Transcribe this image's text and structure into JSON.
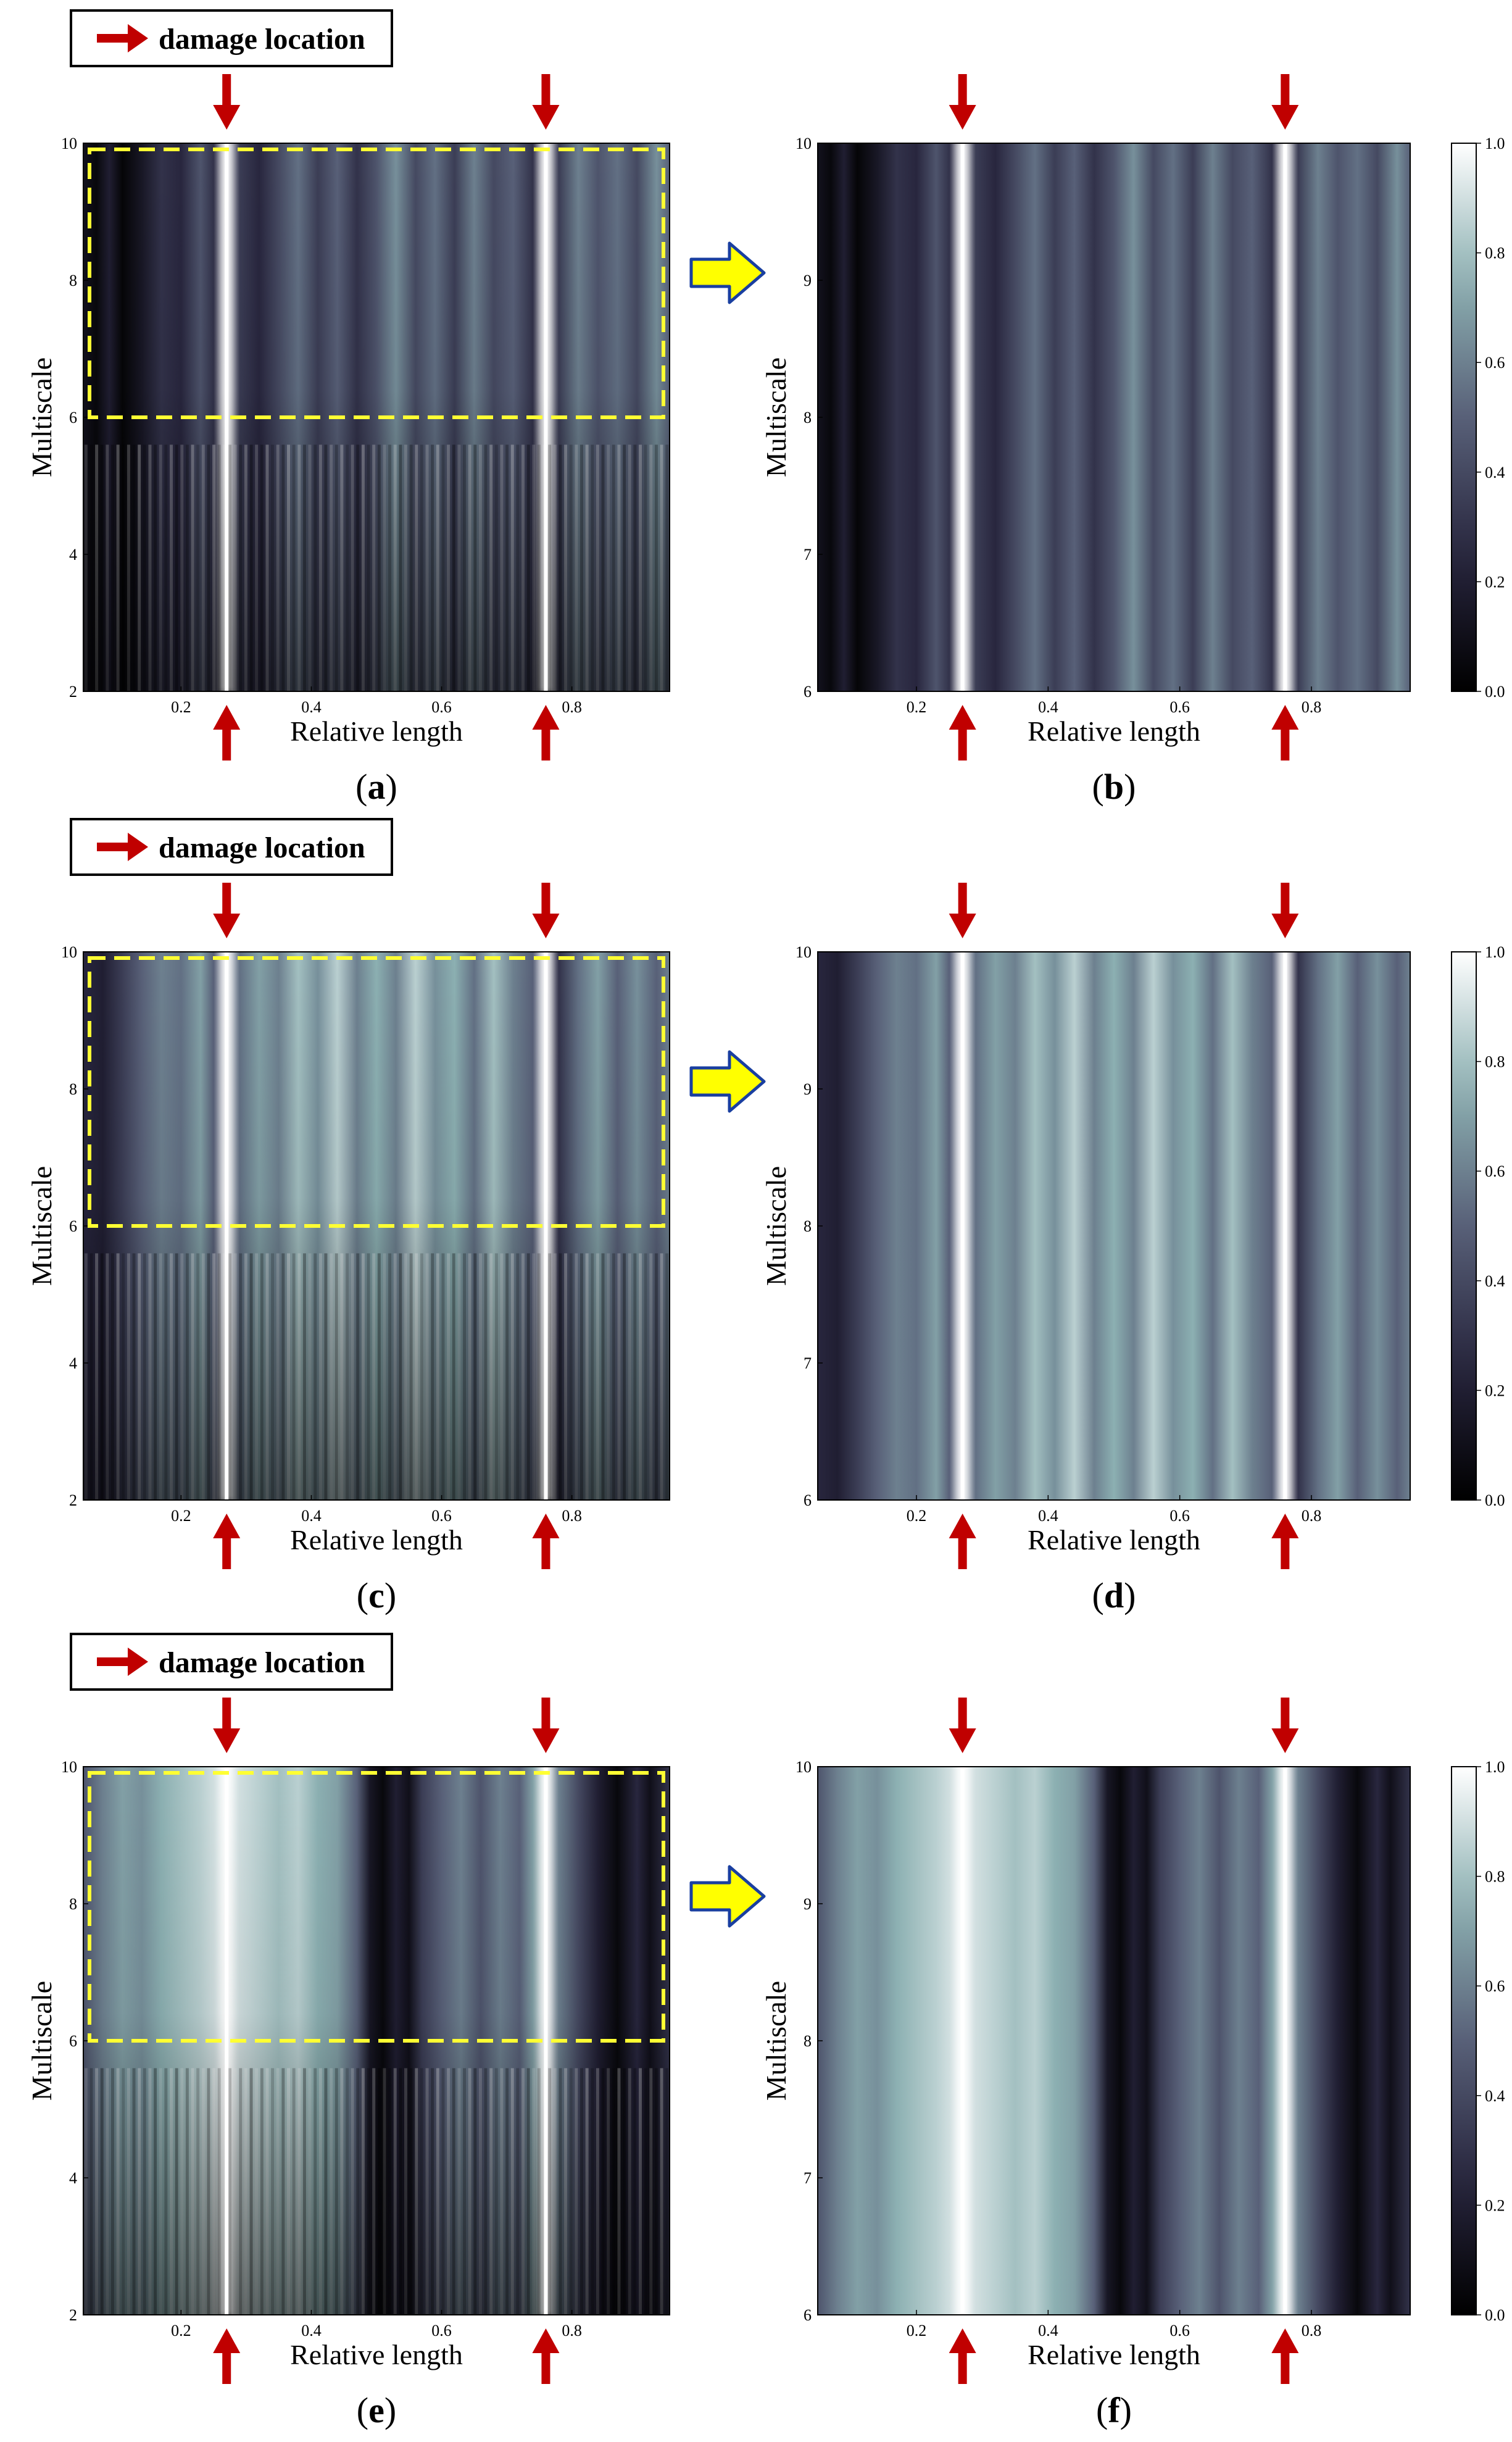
{
  "legend_label": "damage location",
  "colors": {
    "damage_arrow": "#c00000",
    "highlight_box": "#ffff33",
    "zoom_arrow": "#ffff00",
    "zoom_arrow_outline": "#1a3fa0",
    "colormap_low": "#000000",
    "colormap_mid": "#7fa4a8",
    "colormap_high": "#ffffff"
  },
  "chart_data": [
    {
      "panel": "a",
      "type": "heatmap",
      "caption": "a",
      "xlabel": "Relative length",
      "ylabel": "Multiscale",
      "xlim": [
        0.05,
        0.95
      ],
      "ylim": [
        2,
        10
      ],
      "xticks": [
        "0.2",
        "0.4",
        "0.6",
        "0.8"
      ],
      "yticks": [
        "2",
        "4",
        "6",
        "8",
        "10"
      ],
      "damage_locations": [
        0.27,
        0.76
      ],
      "highlight_region": {
        "x": [
          0.05,
          0.95
        ],
        "y": [
          6,
          10
        ]
      },
      "profile": "p1",
      "colorbar": false,
      "show_legend": true
    },
    {
      "panel": "b",
      "type": "heatmap",
      "caption": "b",
      "xlabel": "Relative length",
      "ylabel": "Multiscale",
      "xlim": [
        0.05,
        0.95
      ],
      "ylim": [
        6,
        10
      ],
      "xticks": [
        "0.2",
        "0.4",
        "0.6",
        "0.8"
      ],
      "yticks": [
        "6",
        "7",
        "8",
        "9",
        "10"
      ],
      "damage_locations": [
        0.27,
        0.76
      ],
      "profile": "p1",
      "colorbar": true,
      "colorbar_ticks": [
        "0.0",
        "0.2",
        "0.4",
        "0.6",
        "0.8",
        "1.0"
      ]
    },
    {
      "panel": "c",
      "type": "heatmap",
      "caption": "c",
      "xlabel": "Relative length",
      "ylabel": "Multiscale",
      "xlim": [
        0.05,
        0.95
      ],
      "ylim": [
        2,
        10
      ],
      "xticks": [
        "0.2",
        "0.4",
        "0.6",
        "0.8"
      ],
      "yticks": [
        "2",
        "4",
        "6",
        "8",
        "10"
      ],
      "damage_locations": [
        0.27,
        0.76
      ],
      "highlight_region": {
        "x": [
          0.05,
          0.95
        ],
        "y": [
          6,
          10
        ]
      },
      "profile": "p2",
      "colorbar": false,
      "show_legend": true
    },
    {
      "panel": "d",
      "type": "heatmap",
      "caption": "d",
      "xlabel": "Relative length",
      "ylabel": "Multiscale",
      "xlim": [
        0.05,
        0.95
      ],
      "ylim": [
        6,
        10
      ],
      "xticks": [
        "0.2",
        "0.4",
        "0.6",
        "0.8"
      ],
      "yticks": [
        "6",
        "7",
        "8",
        "9",
        "10"
      ],
      "damage_locations": [
        0.27,
        0.76
      ],
      "profile": "p2",
      "colorbar": true,
      "colorbar_ticks": [
        "0.0",
        "0.2",
        "0.4",
        "0.6",
        "0.8",
        "1.0"
      ]
    },
    {
      "panel": "e",
      "type": "heatmap",
      "caption": "e",
      "xlabel": "Relative length",
      "ylabel": "Multiscale",
      "xlim": [
        0.05,
        0.95
      ],
      "ylim": [
        2,
        10
      ],
      "xticks": [
        "0.2",
        "0.4",
        "0.6",
        "0.8"
      ],
      "yticks": [
        "2",
        "4",
        "6",
        "8",
        "10"
      ],
      "damage_locations": [
        0.27,
        0.76
      ],
      "highlight_region": {
        "x": [
          0.05,
          0.95
        ],
        "y": [
          6,
          10
        ]
      },
      "profile": "p3",
      "colorbar": false,
      "show_legend": true
    },
    {
      "panel": "f",
      "type": "heatmap",
      "caption": "f",
      "xlabel": "Relative length",
      "ylabel": "Multiscale",
      "xlim": [
        0.05,
        0.95
      ],
      "ylim": [
        6,
        10
      ],
      "xticks": [
        "0.2",
        "0.4",
        "0.6",
        "0.8"
      ],
      "yticks": [
        "6",
        "7",
        "8",
        "9",
        "10"
      ],
      "damage_locations": [
        0.27,
        0.76
      ],
      "profile": "p3",
      "colorbar": true,
      "colorbar_ticks": [
        "0.0",
        "0.2",
        "0.4",
        "0.6",
        "0.8",
        "1.0"
      ]
    }
  ],
  "intensity_profiles": {
    "p1": [
      [
        0.05,
        0.12
      ],
      [
        0.07,
        0.05
      ],
      [
        0.09,
        0.2
      ],
      [
        0.11,
        0.03
      ],
      [
        0.14,
        0.15
      ],
      [
        0.17,
        0.3
      ],
      [
        0.2,
        0.25
      ],
      [
        0.23,
        0.45
      ],
      [
        0.25,
        0.3
      ],
      [
        0.27,
        1.0
      ],
      [
        0.29,
        0.35
      ],
      [
        0.32,
        0.25
      ],
      [
        0.35,
        0.4
      ],
      [
        0.38,
        0.55
      ],
      [
        0.41,
        0.35
      ],
      [
        0.44,
        0.5
      ],
      [
        0.47,
        0.3
      ],
      [
        0.5,
        0.45
      ],
      [
        0.53,
        0.65
      ],
      [
        0.56,
        0.4
      ],
      [
        0.59,
        0.55
      ],
      [
        0.62,
        0.35
      ],
      [
        0.65,
        0.6
      ],
      [
        0.68,
        0.4
      ],
      [
        0.71,
        0.5
      ],
      [
        0.74,
        0.3
      ],
      [
        0.76,
        1.0
      ],
      [
        0.78,
        0.35
      ],
      [
        0.81,
        0.6
      ],
      [
        0.84,
        0.45
      ],
      [
        0.87,
        0.55
      ],
      [
        0.9,
        0.4
      ],
      [
        0.93,
        0.65
      ],
      [
        0.95,
        0.5
      ]
    ],
    "p2": [
      [
        0.05,
        0.25
      ],
      [
        0.08,
        0.2
      ],
      [
        0.11,
        0.35
      ],
      [
        0.14,
        0.5
      ],
      [
        0.17,
        0.6
      ],
      [
        0.2,
        0.55
      ],
      [
        0.23,
        0.7
      ],
      [
        0.25,
        0.5
      ],
      [
        0.27,
        1.0
      ],
      [
        0.29,
        0.55
      ],
      [
        0.32,
        0.7
      ],
      [
        0.35,
        0.6
      ],
      [
        0.38,
        0.8
      ],
      [
        0.41,
        0.65
      ],
      [
        0.44,
        0.85
      ],
      [
        0.47,
        0.6
      ],
      [
        0.5,
        0.75
      ],
      [
        0.53,
        0.6
      ],
      [
        0.56,
        0.85
      ],
      [
        0.59,
        0.65
      ],
      [
        0.62,
        0.75
      ],
      [
        0.65,
        0.55
      ],
      [
        0.68,
        0.8
      ],
      [
        0.71,
        0.6
      ],
      [
        0.74,
        0.5
      ],
      [
        0.76,
        1.0
      ],
      [
        0.78,
        0.3
      ],
      [
        0.81,
        0.55
      ],
      [
        0.84,
        0.7
      ],
      [
        0.87,
        0.5
      ],
      [
        0.9,
        0.65
      ],
      [
        0.93,
        0.5
      ],
      [
        0.95,
        0.6
      ]
    ],
    "p3": [
      [
        0.05,
        0.45
      ],
      [
        0.08,
        0.6
      ],
      [
        0.11,
        0.7
      ],
      [
        0.14,
        0.65
      ],
      [
        0.17,
        0.75
      ],
      [
        0.2,
        0.8
      ],
      [
        0.23,
        0.85
      ],
      [
        0.25,
        0.9
      ],
      [
        0.27,
        1.0
      ],
      [
        0.29,
        0.9
      ],
      [
        0.32,
        0.85
      ],
      [
        0.35,
        0.8
      ],
      [
        0.38,
        0.85
      ],
      [
        0.41,
        0.75
      ],
      [
        0.44,
        0.7
      ],
      [
        0.47,
        0.5
      ],
      [
        0.49,
        0.15
      ],
      [
        0.51,
        0.05
      ],
      [
        0.53,
        0.2
      ],
      [
        0.55,
        0.1
      ],
      [
        0.57,
        0.35
      ],
      [
        0.6,
        0.5
      ],
      [
        0.63,
        0.6
      ],
      [
        0.66,
        0.45
      ],
      [
        0.69,
        0.6
      ],
      [
        0.72,
        0.5
      ],
      [
        0.74,
        0.7
      ],
      [
        0.76,
        1.0
      ],
      [
        0.78,
        0.6
      ],
      [
        0.81,
        0.4
      ],
      [
        0.84,
        0.2
      ],
      [
        0.87,
        0.05
      ],
      [
        0.9,
        0.25
      ],
      [
        0.92,
        0.1
      ],
      [
        0.95,
        0.3
      ]
    ]
  }
}
